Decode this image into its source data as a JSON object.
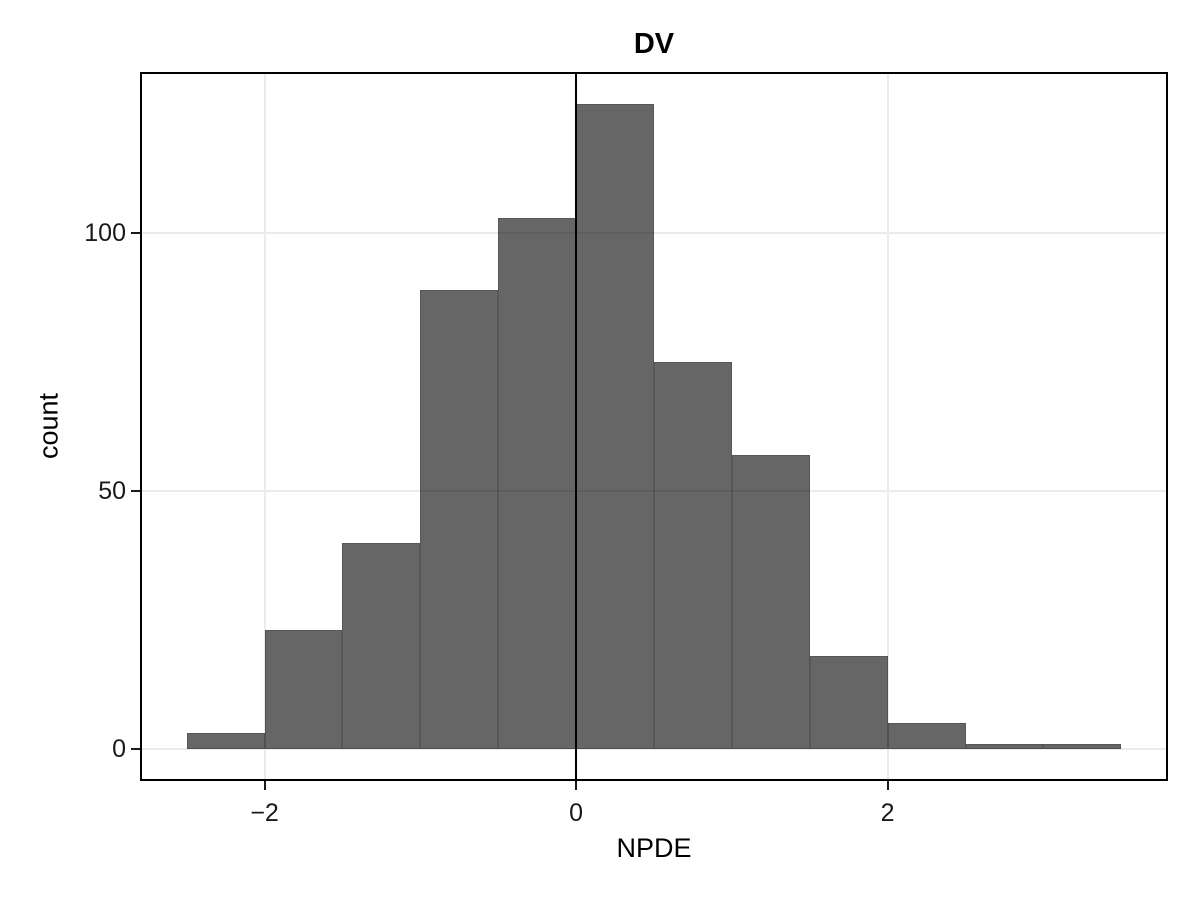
{
  "chart_data": {
    "type": "bar",
    "subtype": "histogram",
    "title": "DV",
    "xlabel": "NPDE",
    "ylabel": "count",
    "bin_edges": [
      -2.5,
      -2.0,
      -1.5,
      -1.0,
      -0.5,
      0.0,
      0.5,
      1.0,
      1.5,
      2.0,
      2.5,
      3.0,
      3.5
    ],
    "counts": [
      3,
      23,
      40,
      89,
      103,
      125,
      75,
      57,
      18,
      5,
      1,
      1
    ],
    "x_tick_values": [
      -2,
      0,
      2
    ],
    "x_tick_labels": [
      "−2",
      "0",
      "2"
    ],
    "y_tick_values": [
      0,
      50,
      100
    ],
    "y_tick_labels": [
      "0",
      "50",
      "100"
    ],
    "xlim": [
      -2.8,
      3.8
    ],
    "ylim": [
      -6.25,
      131.25
    ],
    "reference_line_x": 0,
    "grid": true,
    "legend": "none",
    "colors": {
      "bar_fill": "rgba(0,0,0,0.60)",
      "bar_fill_hex": "#666666",
      "grid": "#ebebeb",
      "panel_border": "#000000",
      "reference_line": "#000000",
      "axis_text": "#1a1a1a",
      "title_text": "#000000"
    }
  }
}
